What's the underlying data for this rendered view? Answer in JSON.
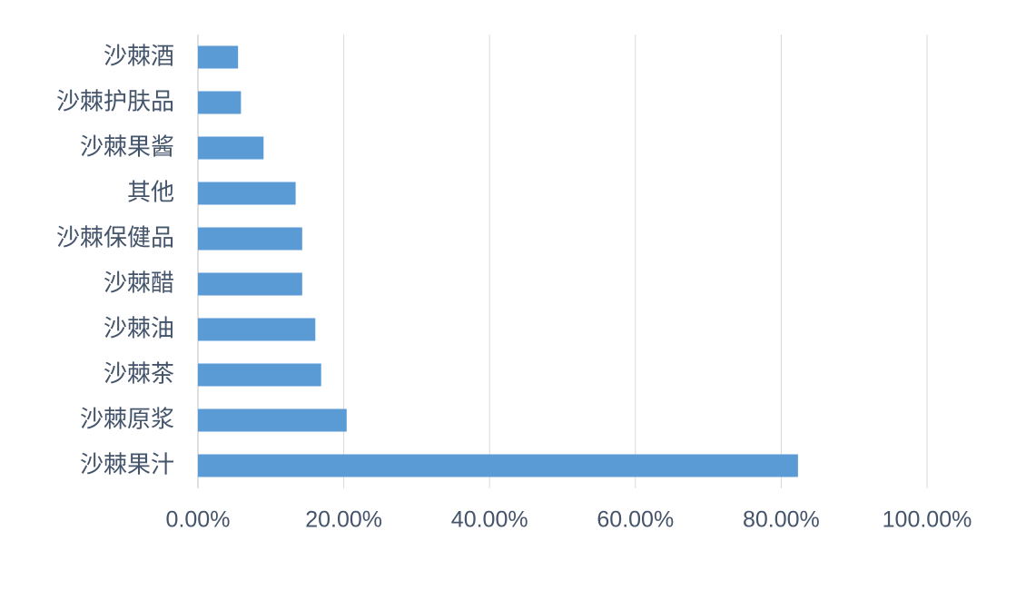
{
  "chart_data": {
    "type": "bar",
    "orientation": "horizontal",
    "categories": [
      "沙棘酒",
      "沙棘护肤品",
      "沙棘果酱",
      "其他",
      "沙棘保健品",
      "沙棘醋",
      "沙棘油",
      "沙棘茶",
      "沙棘原浆",
      "沙棘果汁"
    ],
    "values": [
      5.5,
      5.9,
      9.0,
      13.4,
      14.3,
      14.3,
      16.1,
      16.9,
      20.4,
      82.3
    ],
    "color": "#5b9bd5",
    "xlim": [
      0,
      100
    ],
    "xticks": [
      {
        "value": 0,
        "label": "0.00%"
      },
      {
        "value": 20,
        "label": "20.00%"
      },
      {
        "value": 40,
        "label": "40.00%"
      },
      {
        "value": 60,
        "label": "60.00%"
      },
      {
        "value": 80,
        "label": "80.00%"
      },
      {
        "value": 100,
        "label": "100.00%"
      }
    ],
    "grid": true
  }
}
